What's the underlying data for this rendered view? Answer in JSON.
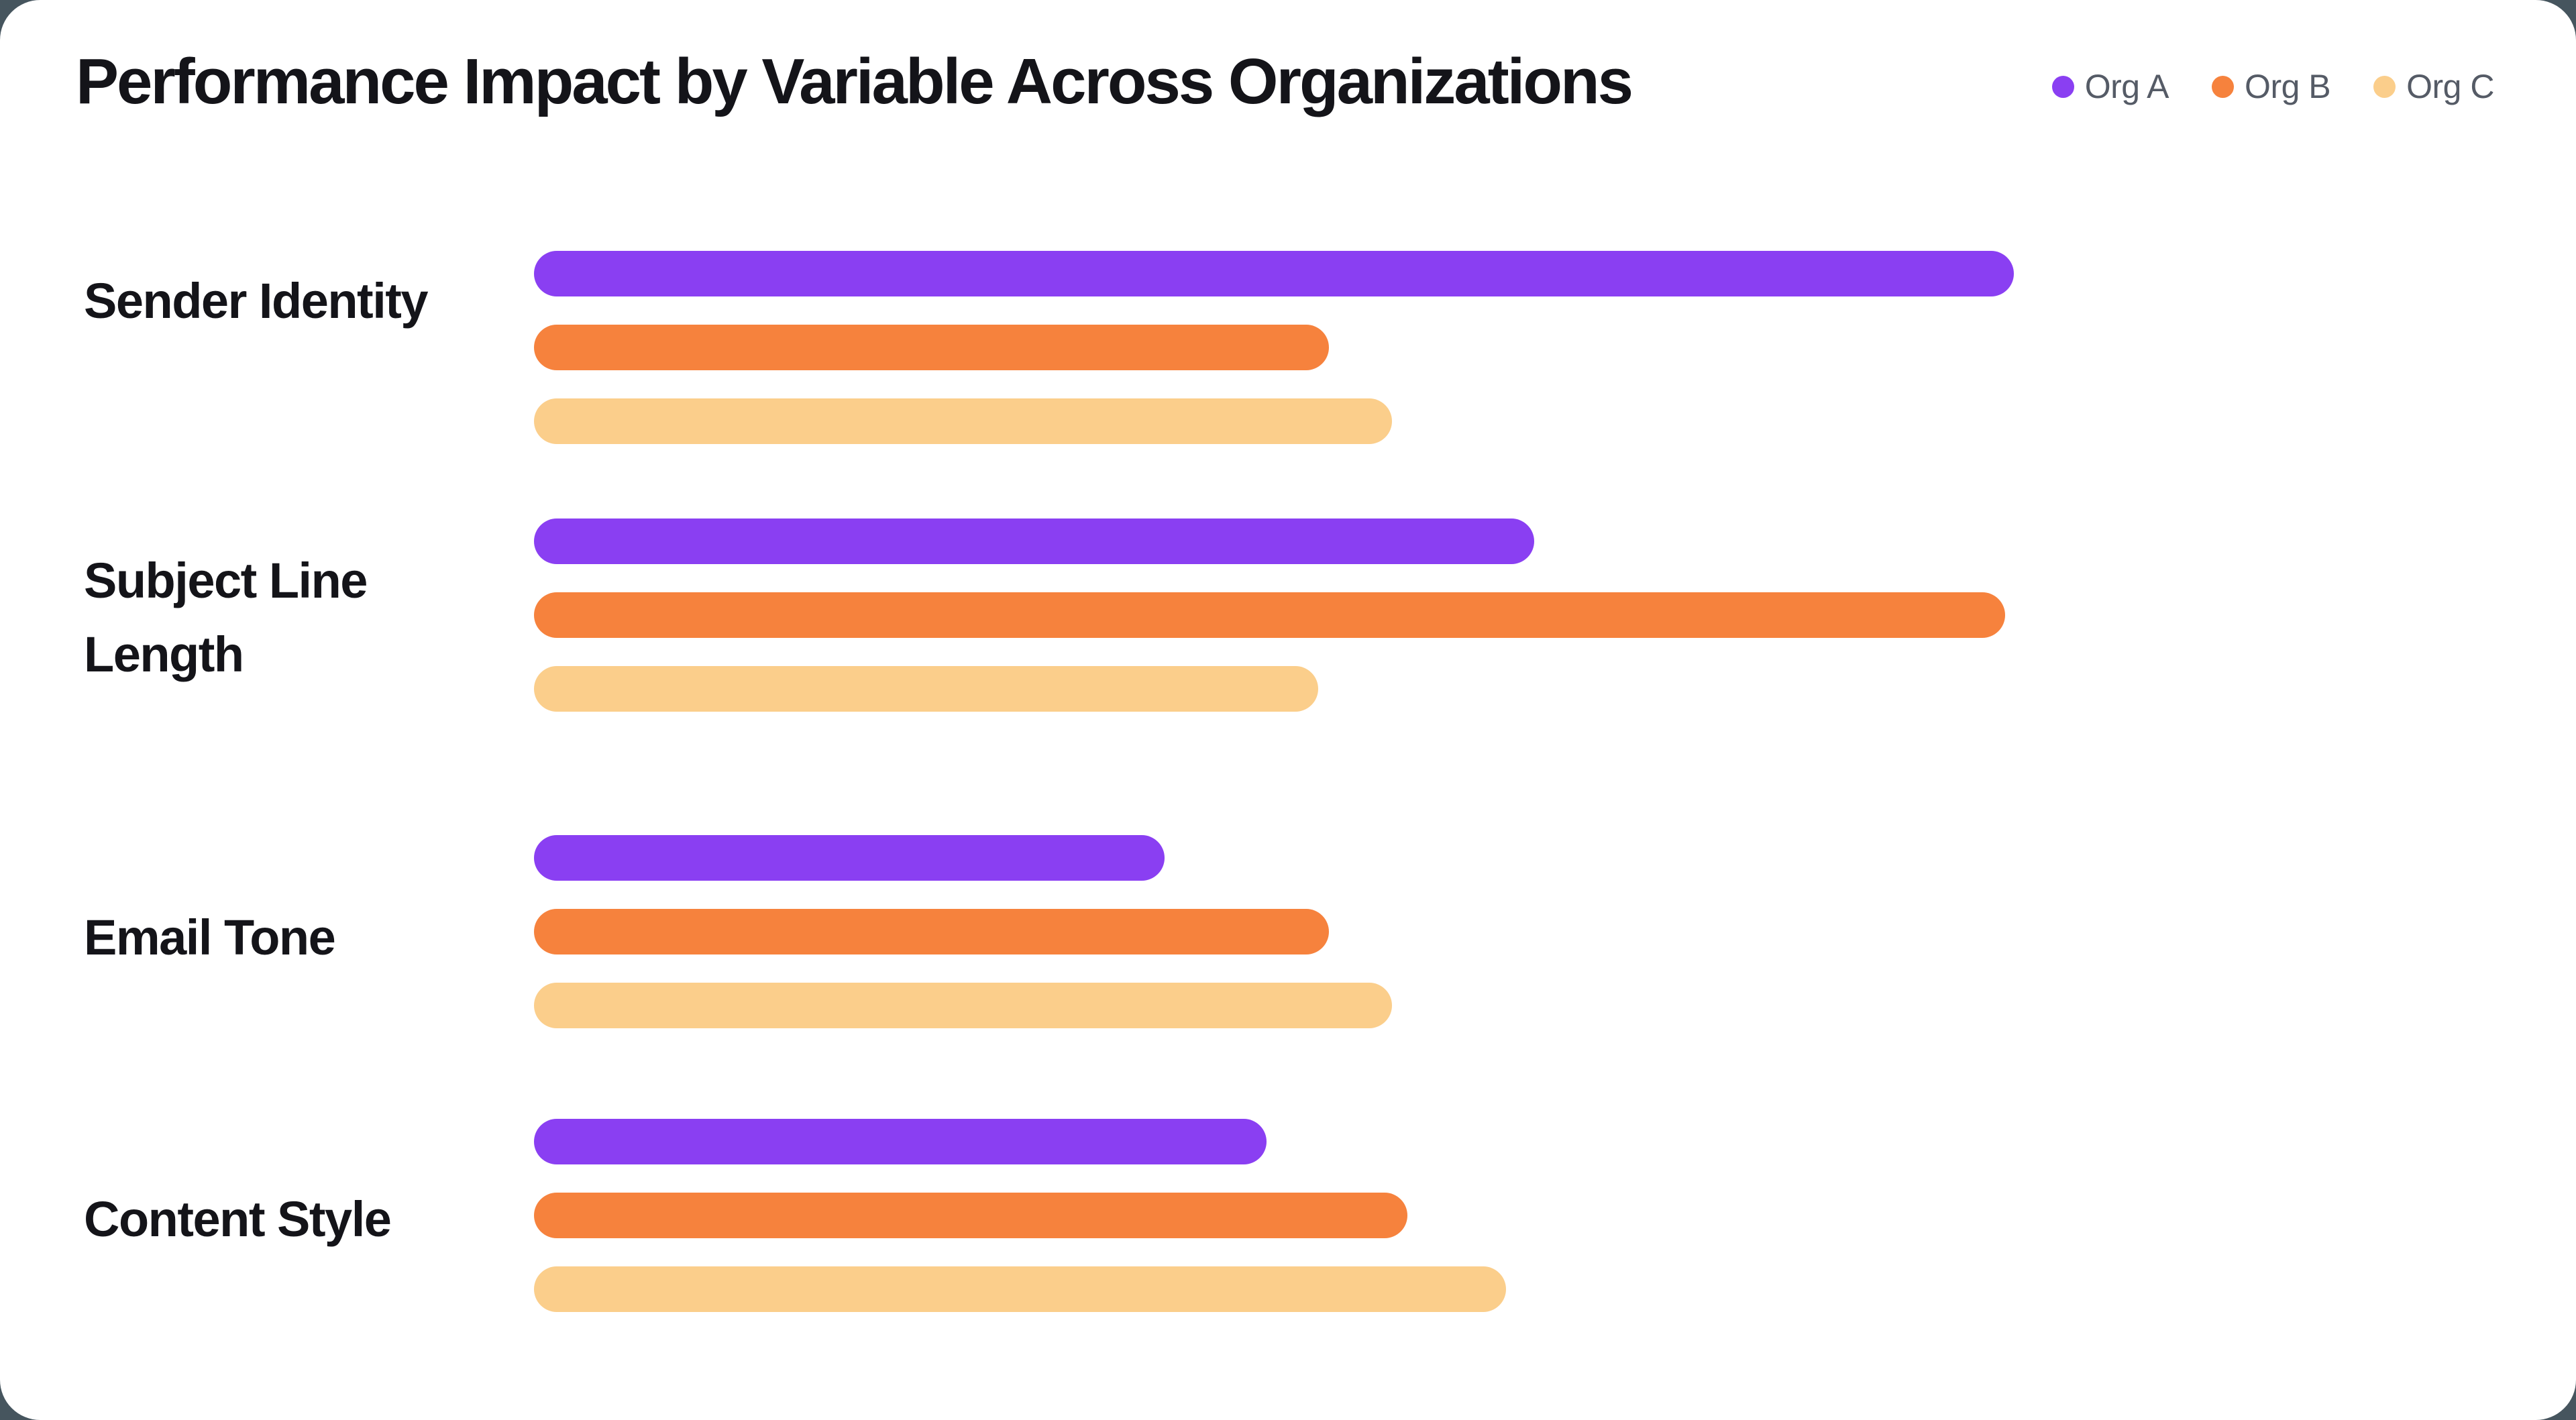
{
  "card": {
    "background": "#ffffff",
    "outside_background": "#46555e"
  },
  "header": {
    "title": "Performance Impact by Variable Across Organizations"
  },
  "legend": [
    {
      "label": "Org A",
      "color": "#8a3ff2"
    },
    {
      "label": "Org B",
      "color": "#f6823d"
    },
    {
      "label": "Org C",
      "color": "#fbce8b"
    }
  ],
  "chart_data": {
    "type": "bar",
    "orientation": "horizontal",
    "title": "Performance Impact by Variable Across Organizations",
    "categories": [
      "Sender Identity",
      "Subject Line Length",
      "Email Tone",
      "Content Style"
    ],
    "series": [
      {
        "name": "Org A",
        "color": "#8a3ff2",
        "values": [
          100,
          67.6,
          42.6,
          49.5
        ]
      },
      {
        "name": "Org B",
        "color": "#f6823d",
        "values": [
          53.7,
          99.4,
          53.7,
          59.0
        ]
      },
      {
        "name": "Org C",
        "color": "#fbce8b",
        "values": [
          58.0,
          53.0,
          58.0,
          65.7
        ]
      }
    ],
    "xlim": [
      0,
      100
    ],
    "note": "no axis labels or value labels shown; values estimated relative to longest bar = 100",
    "gridlines": false,
    "legend_position": "top-right",
    "bar_shape": "pill"
  }
}
